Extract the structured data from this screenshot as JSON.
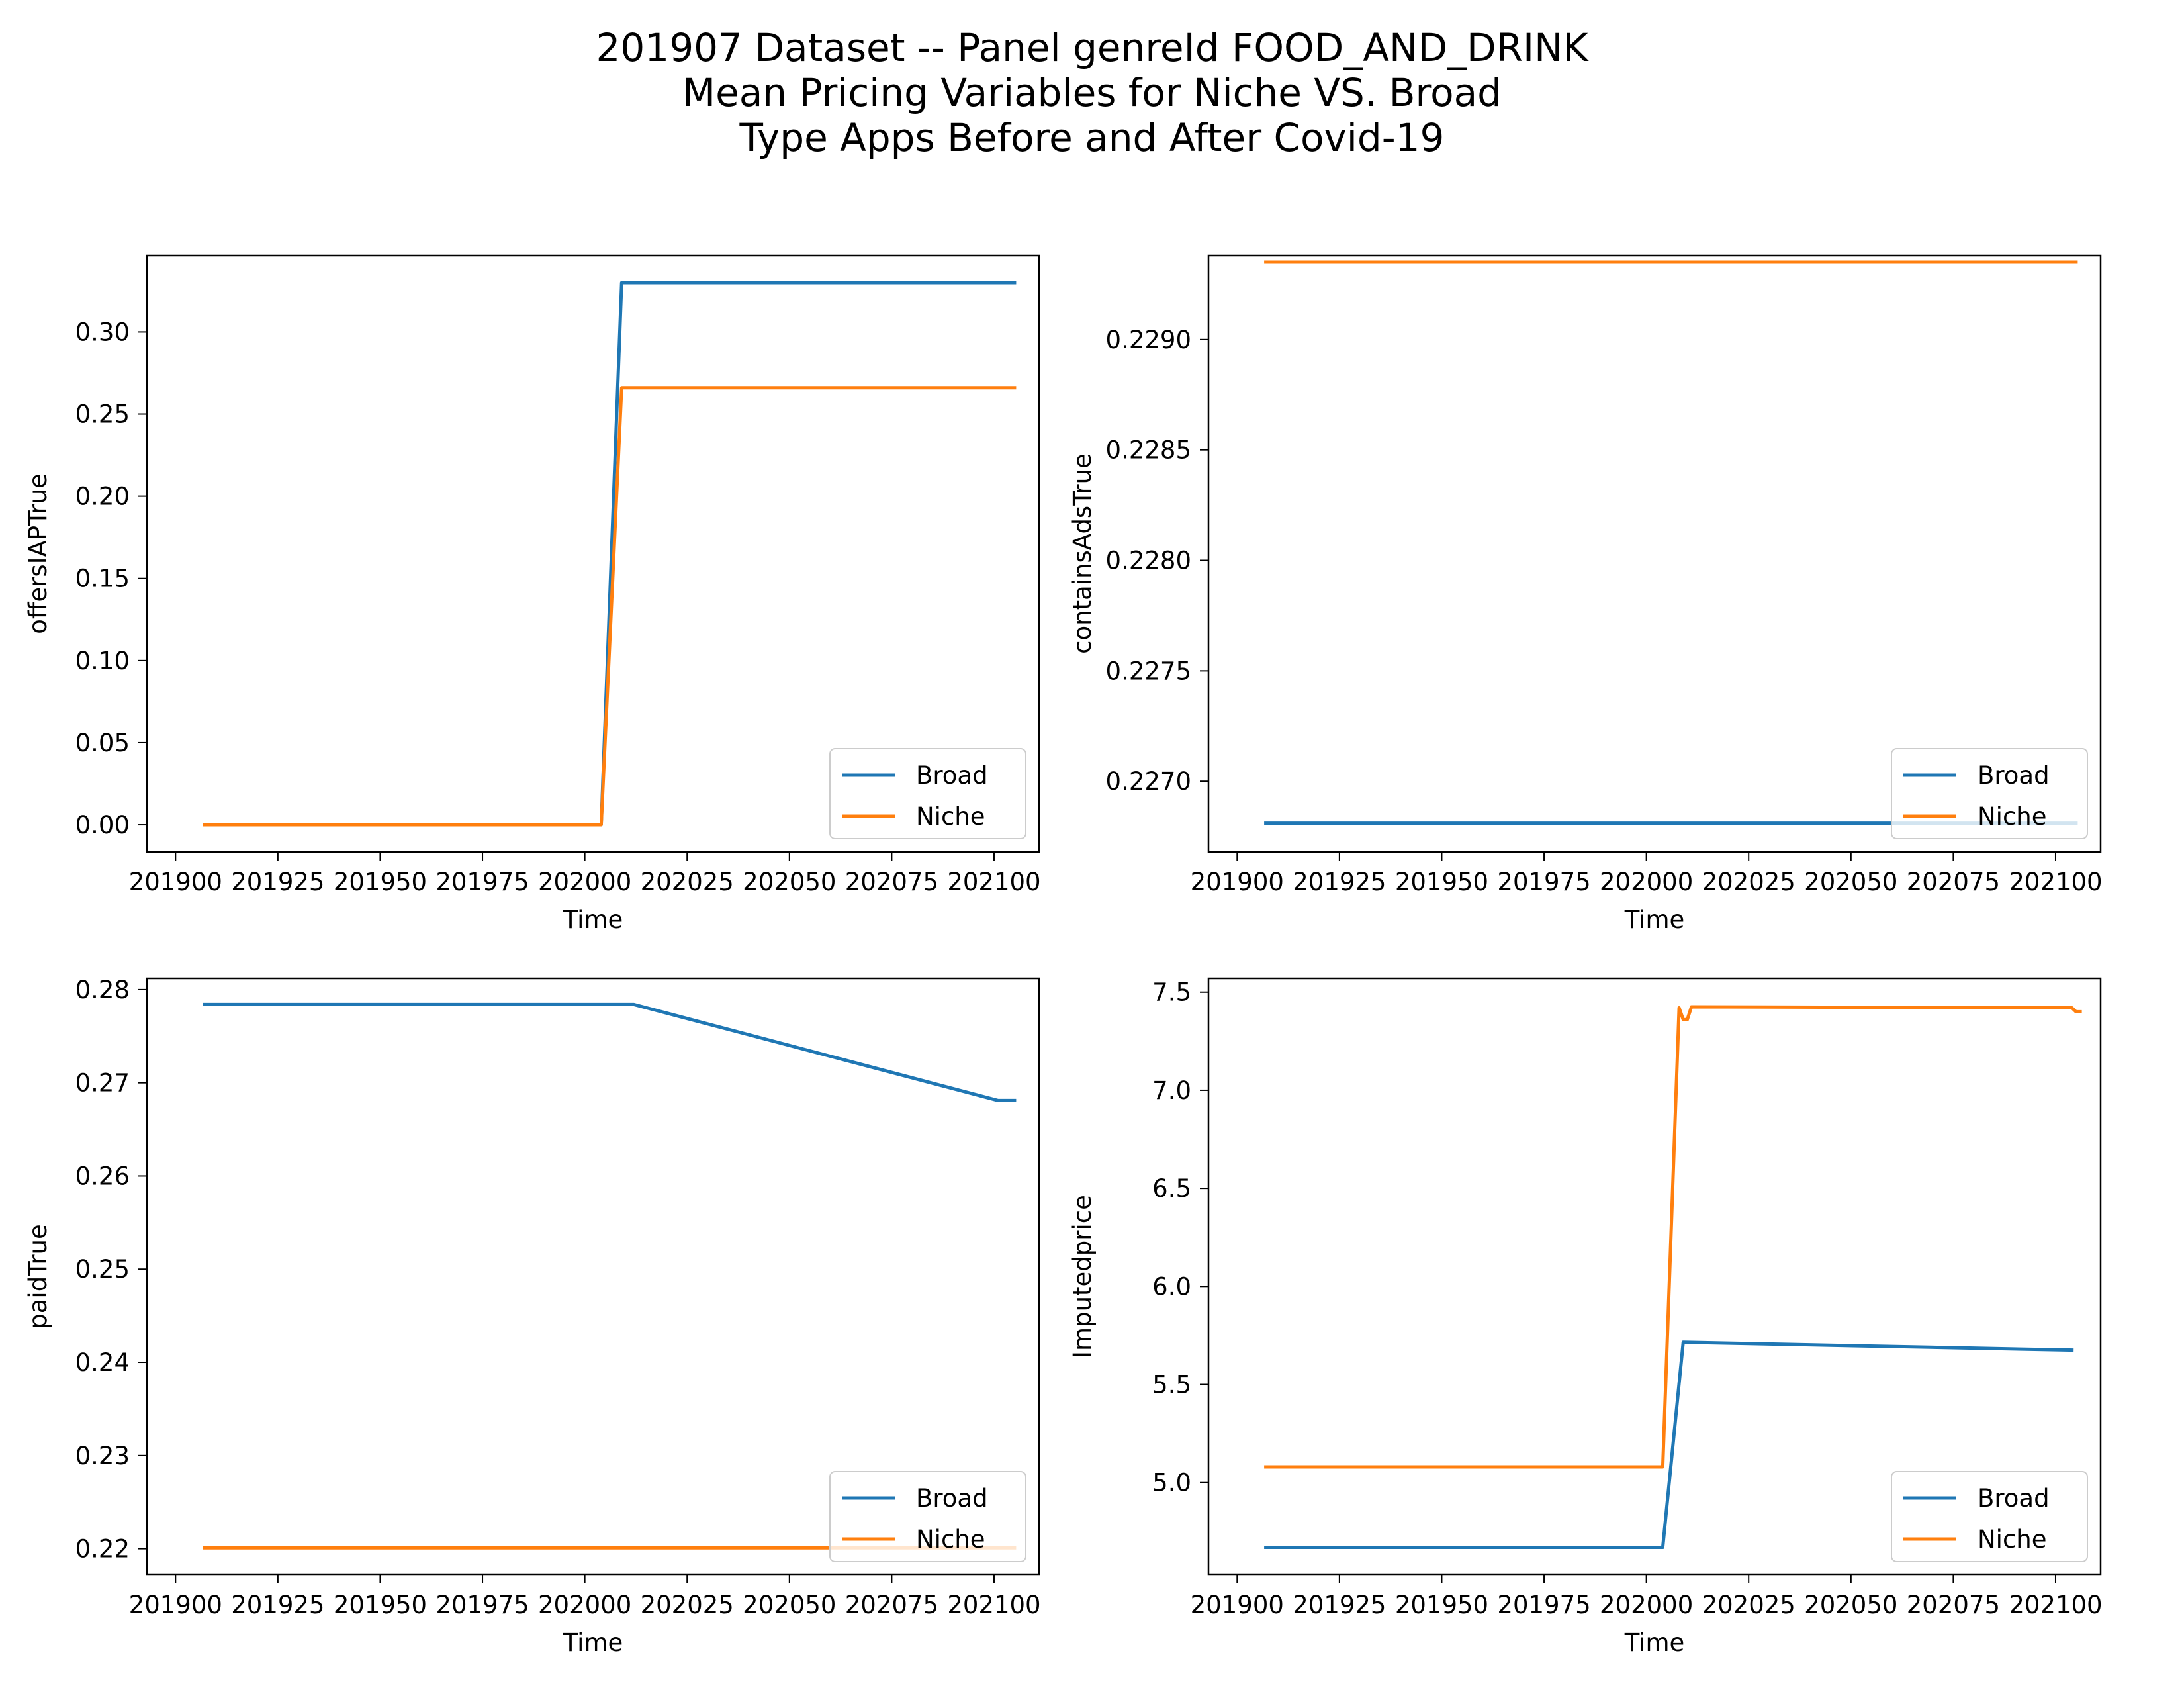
{
  "figure": {
    "title_lines": [
      "201907 Dataset -- Panel genreId FOOD_AND_DRINK",
      "Mean Pricing Variables for Niche VS. Broad",
      "Type Apps Before and After Covid-19"
    ]
  },
  "colors": {
    "Broad": "#1f77b4",
    "Niche": "#ff7f0e"
  },
  "chart_data": [
    {
      "type": "line",
      "xlabel": "Time",
      "ylabel": "offersIAPTrue",
      "xlim": [
        201893,
        202111
      ],
      "ylim": [
        -0.0165,
        0.3465
      ],
      "xticks": [
        201900,
        201925,
        201950,
        201975,
        202000,
        202025,
        202050,
        202075,
        202100
      ],
      "yticks": [
        0.0,
        0.05,
        0.1,
        0.15,
        0.2,
        0.25,
        0.3
      ],
      "ytick_labels": [
        "0.00",
        "0.05",
        "0.10",
        "0.15",
        "0.20",
        "0.25",
        "0.30"
      ],
      "legend": "lower-right",
      "series": [
        {
          "name": "Broad",
          "points": [
            [
              201907,
              0.0
            ],
            [
              202004,
              0.0
            ],
            [
              202009,
              0.33
            ],
            [
              202105,
              0.33
            ]
          ]
        },
        {
          "name": "Niche",
          "points": [
            [
              201907,
              0.0
            ],
            [
              202004,
              0.0
            ],
            [
              202009,
              0.266
            ],
            [
              202105,
              0.266
            ]
          ]
        }
      ]
    },
    {
      "type": "line",
      "xlabel": "Time",
      "ylabel": "containsAdsTrue",
      "xlim": [
        201893,
        202111
      ],
      "ylim": [
        0.22668,
        0.22938
      ],
      "xticks": [
        201900,
        201925,
        201950,
        201975,
        202000,
        202025,
        202050,
        202075,
        202100
      ],
      "yticks": [
        0.227,
        0.2275,
        0.228,
        0.2285,
        0.229
      ],
      "ytick_labels": [
        "0.2270",
        "0.2275",
        "0.2280",
        "0.2285",
        "0.2290"
      ],
      "legend": "lower-right",
      "series": [
        {
          "name": "Broad",
          "points": [
            [
              201907,
              0.22681
            ],
            [
              202105,
              0.22681
            ]
          ]
        },
        {
          "name": "Niche",
          "points": [
            [
              201907,
              0.22935
            ],
            [
              202105,
              0.22935
            ]
          ]
        }
      ]
    },
    {
      "type": "line",
      "xlabel": "Time",
      "ylabel": "paidTrue",
      "xlim": [
        201893,
        202111
      ],
      "ylim": [
        0.2172,
        0.2812
      ],
      "xticks": [
        201900,
        201925,
        201950,
        201975,
        202000,
        202025,
        202050,
        202075,
        202100
      ],
      "yticks": [
        0.22,
        0.23,
        0.24,
        0.25,
        0.26,
        0.27,
        0.28
      ],
      "ytick_labels": [
        "0.22",
        "0.23",
        "0.24",
        "0.25",
        "0.26",
        "0.27",
        "0.28"
      ],
      "legend": "lower-right",
      "series": [
        {
          "name": "Broad",
          "points": [
            [
              201907,
              0.2784
            ],
            [
              202012,
              0.2784
            ],
            [
              202101,
              0.2681
            ],
            [
              202105,
              0.2681
            ]
          ]
        },
        {
          "name": "Niche",
          "points": [
            [
              201907,
              0.2201
            ],
            [
              202105,
              0.2201
            ]
          ]
        }
      ]
    },
    {
      "type": "line",
      "xlabel": "Time",
      "ylabel": "Imputedprice",
      "xlim": [
        201893,
        202111
      ],
      "ylim": [
        4.53,
        7.57
      ],
      "xticks": [
        201900,
        201925,
        201950,
        201975,
        202000,
        202025,
        202050,
        202075,
        202100
      ],
      "yticks": [
        5.0,
        5.5,
        6.0,
        6.5,
        7.0,
        7.5
      ],
      "ytick_labels": [
        "5.0",
        "5.5",
        "6.0",
        "6.5",
        "7.0",
        "7.5"
      ],
      "legend": "lower-right",
      "series": [
        {
          "name": "Broad",
          "points": [
            [
              201907,
              4.67
            ],
            [
              202004,
              4.67
            ],
            [
              202009,
              5.715
            ],
            [
              202104,
              5.675
            ]
          ]
        },
        {
          "name": "Niche",
          "points": [
            [
              201907,
              5.08
            ],
            [
              202004,
              5.08
            ],
            [
              202008,
              7.42
            ],
            [
              202009,
              7.36
            ],
            [
              202010,
              7.36
            ],
            [
              202011,
              7.425
            ],
            [
              202104,
              7.42
            ],
            [
              202105,
              7.4
            ],
            [
              202106,
              7.4
            ]
          ]
        }
      ]
    }
  ]
}
